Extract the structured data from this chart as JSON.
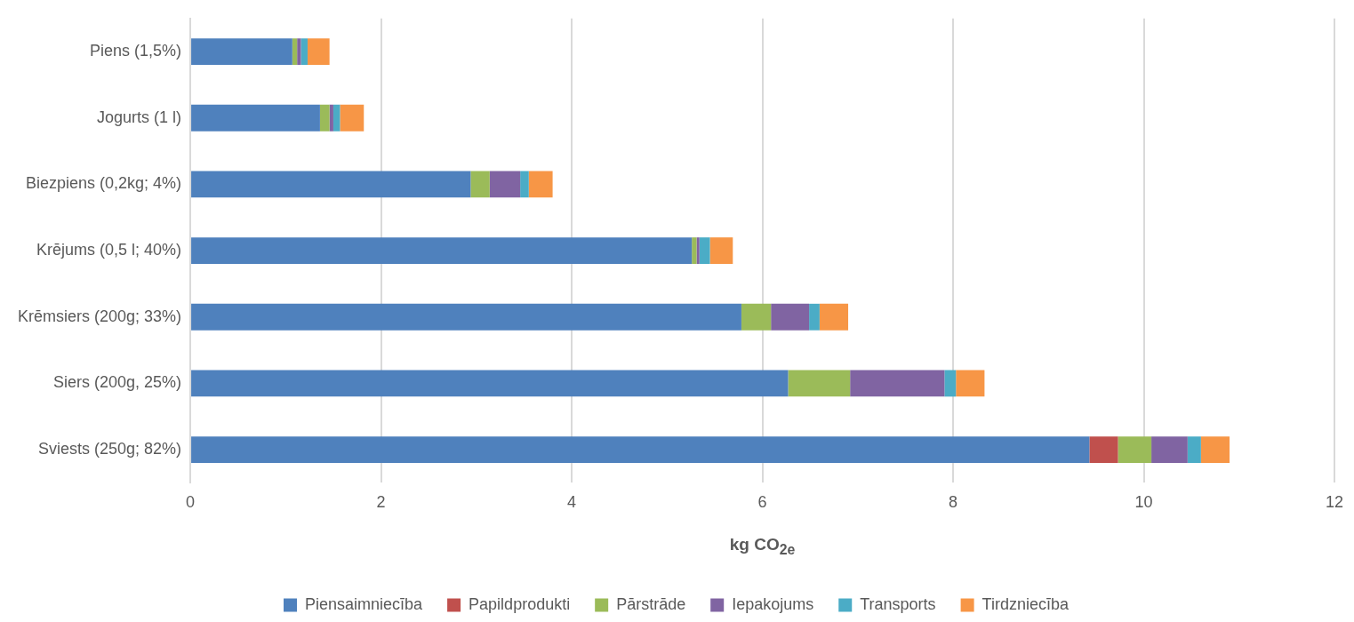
{
  "chart_data": {
    "type": "bar",
    "orientation": "horizontal",
    "stacked": true,
    "categories": [
      "Piens (1,5%)",
      "Jogurts (1 l)",
      "Biezpiens (0,2kg; 4%)",
      "Krējums (0,5 l; 40%)",
      "Krēmsiers (200g; 33%)",
      "Siers (200g, 25%)",
      "Sviests (250g; 82%)"
    ],
    "series": [
      {
        "name": "Piensaimniecība",
        "color": "#4f81bd",
        "values": [
          1.07,
          1.36,
          2.94,
          5.26,
          5.78,
          6.27,
          9.43
        ]
      },
      {
        "name": "Papildprodukti",
        "color": "#c0504d",
        "values": [
          0,
          0,
          0,
          0,
          0,
          0,
          0.3
        ]
      },
      {
        "name": "Pārstrāde",
        "color": "#9bbb59",
        "values": [
          0.05,
          0.1,
          0.2,
          0.05,
          0.31,
          0.65,
          0.35
        ]
      },
      {
        "name": "Iepakojums",
        "color": "#8064a2",
        "values": [
          0.04,
          0.04,
          0.32,
          0.03,
          0.4,
          0.99,
          0.38
        ]
      },
      {
        "name": "Transports",
        "color": "#4bacc6",
        "values": [
          0.07,
          0.07,
          0.09,
          0.11,
          0.11,
          0.12,
          0.14
        ]
      },
      {
        "name": "Tirdzniecība",
        "color": "#f79646",
        "values": [
          0.23,
          0.25,
          0.25,
          0.24,
          0.3,
          0.3,
          0.3
        ]
      }
    ],
    "xlabel": "kg CO$_{2e}$",
    "xlim": [
      0,
      12
    ],
    "xticks": [
      0,
      2,
      4,
      6,
      8,
      10,
      12
    ],
    "grid": "x",
    "legend": "bottom"
  }
}
